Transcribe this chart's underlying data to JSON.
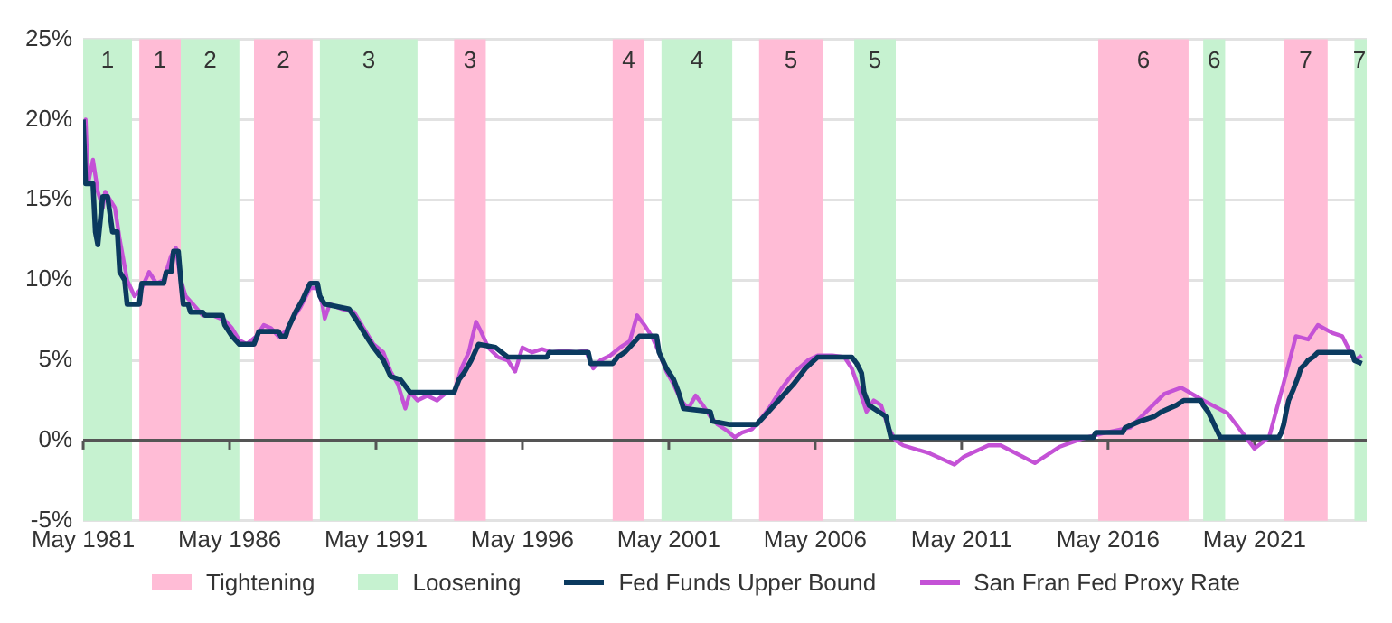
{
  "chart_data": {
    "type": "line",
    "xlim": [
      "1981-05",
      "2025-03"
    ],
    "xticks": [
      {
        "value": "1981-05",
        "label": "May 1981"
      },
      {
        "value": "1986-05",
        "label": "May 1986"
      },
      {
        "value": "1991-05",
        "label": "May 1991"
      },
      {
        "value": "1996-05",
        "label": "May 1996"
      },
      {
        "value": "2001-05",
        "label": "May 2001"
      },
      {
        "value": "2006-05",
        "label": "May 2006"
      },
      {
        "value": "2011-05",
        "label": "May 2011"
      },
      {
        "value": "2016-05",
        "label": "May 2016"
      },
      {
        "value": "2021-05",
        "label": "May 2021"
      }
    ],
    "ylim": [
      -5,
      25
    ],
    "yticks": [
      {
        "value": -5,
        "label": "-5%"
      },
      {
        "value": 0,
        "label": "0%"
      },
      {
        "value": 5,
        "label": "5%"
      },
      {
        "value": 10,
        "label": "10%"
      },
      {
        "value": 15,
        "label": "15%"
      },
      {
        "value": 20,
        "label": "20%"
      },
      {
        "value": 25,
        "label": "25%"
      }
    ],
    "grid": "y",
    "legend": "bottom",
    "annotations": [
      "Tightening",
      "Loosening"
    ],
    "bands": [
      {
        "axis": "x",
        "from": "1983-04",
        "to": "1984-09",
        "label": "1",
        "color": "#ffbcd6"
      },
      {
        "axis": "x",
        "from": "1987-03",
        "to": "1989-03",
        "label": "2",
        "color": "#ffbcd6"
      },
      {
        "axis": "x",
        "from": "1994-01",
        "to": "1995-02",
        "label": "3",
        "color": "#ffbcd6"
      },
      {
        "axis": "x",
        "from": "1999-06",
        "to": "2000-07",
        "label": "4",
        "color": "#ffbcd6"
      },
      {
        "axis": "x",
        "from": "2004-06",
        "to": "2006-08",
        "label": "5",
        "color": "#ffbcd6"
      },
      {
        "axis": "x",
        "from": "2016-01",
        "to": "2019-02",
        "label": "6",
        "color": "#ffbcd6"
      },
      {
        "axis": "x",
        "from": "2022-05",
        "to": "2023-11",
        "label": "7",
        "color": "#ffbcd6"
      },
      {
        "axis": "x",
        "from": "1981-05",
        "to": "1983-01",
        "label": "1",
        "color": "#c6f2d0"
      },
      {
        "axis": "x",
        "from": "1984-09",
        "to": "1986-09",
        "label": "2",
        "color": "#c6f2d0"
      },
      {
        "axis": "x",
        "from": "1989-06",
        "to": "1992-10",
        "label": "3",
        "color": "#c6f2d0"
      },
      {
        "axis": "x",
        "from": "2001-02",
        "to": "2003-07",
        "label": "4",
        "color": "#c6f2d0"
      },
      {
        "axis": "x",
        "from": "2007-09",
        "to": "2009-02",
        "label": "5",
        "color": "#c6f2d0"
      },
      {
        "axis": "x",
        "from": "2019-08",
        "to": "2020-05",
        "label": "6",
        "color": "#c6f2d0"
      },
      {
        "axis": "x",
        "from": "2024-10",
        "to": "2025-03",
        "label": "7",
        "color": "#c6f2d0"
      }
    ],
    "series": [
      {
        "name": "Fed Funds Upper Bound",
        "color": "#0b3a5f",
        "x": [
          "1981-05",
          "1981-06",
          "1981-09",
          "1981-10",
          "1981-11",
          "1982-01",
          "1982-03",
          "1982-05",
          "1982-07",
          "1982-08",
          "1982-10",
          "1982-11",
          "1983-04",
          "1983-05",
          "1984-02",
          "1984-03",
          "1984-05",
          "1984-06",
          "1984-08",
          "1984-09",
          "1984-10",
          "1984-12",
          "1985-01",
          "1985-06",
          "1985-07",
          "1986-02",
          "1986-03",
          "1986-06",
          "1986-09",
          "1987-03",
          "1987-05",
          "1988-01",
          "1988-02",
          "1988-04",
          "1988-05",
          "1988-08",
          "1988-11",
          "1989-02",
          "1989-05",
          "1989-06",
          "1989-08",
          "1990-06",
          "1990-09",
          "1991-01",
          "1991-04",
          "1991-08",
          "1991-11",
          "1992-03",
          "1992-07",
          "1994-01",
          "1994-03",
          "1994-05",
          "1994-08",
          "1994-11",
          "1995-06",
          "1995-11",
          "1997-03",
          "1997-04",
          "1998-08",
          "1998-09",
          "1999-06",
          "1999-08",
          "1999-11",
          "2000-02",
          "2000-05",
          "2000-12",
          "2001-01",
          "2001-04",
          "2001-07",
          "2001-09",
          "2001-11",
          "2002-10",
          "2002-11",
          "2003-06",
          "2004-05",
          "2004-08",
          "2005-02",
          "2005-08",
          "2006-01",
          "2006-06",
          "2007-08",
          "2007-10",
          "2007-12",
          "2008-01",
          "2008-03",
          "2008-10",
          "2008-12",
          "2015-11",
          "2015-12",
          "2016-11",
          "2016-12",
          "2017-03",
          "2017-06",
          "2017-12",
          "2018-03",
          "2018-06",
          "2018-09",
          "2018-12",
          "2019-07",
          "2019-08",
          "2019-10",
          "2020-03",
          "2022-03",
          "2022-04",
          "2022-05",
          "2022-06",
          "2022-07",
          "2022-09",
          "2022-11",
          "2022-12",
          "2023-02",
          "2023-03",
          "2023-05",
          "2023-07",
          "2024-09",
          "2024-10",
          "2025-01"
        ],
        "values": [
          20,
          16,
          16,
          13,
          12.2,
          15.2,
          15.2,
          13,
          13,
          10.5,
          10,
          8.5,
          8.5,
          9.8,
          9.8,
          10.5,
          10.5,
          11.8,
          11.8,
          10,
          8.5,
          8.5,
          8,
          8,
          7.8,
          7.8,
          7.2,
          6.5,
          6,
          6,
          6.8,
          6.8,
          6.5,
          6.5,
          7,
          8,
          8.8,
          9.8,
          9.8,
          9,
          8.5,
          8.2,
          7.5,
          6.5,
          5.8,
          5,
          4,
          3.8,
          3,
          3,
          3.8,
          4.2,
          5,
          6,
          5.8,
          5.2,
          5.2,
          5.5,
          5.5,
          4.8,
          4.8,
          5.2,
          5.5,
          6,
          6.5,
          6.5,
          5.5,
          4.5,
          3.8,
          3,
          2,
          1.8,
          1.2,
          1,
          1,
          1.5,
          2.5,
          3.5,
          4.5,
          5.2,
          5.2,
          4.8,
          4.2,
          3,
          2.2,
          1.5,
          0.2,
          0.2,
          0.5,
          0.5,
          0.8,
          1,
          1.2,
          1.5,
          1.8,
          2,
          2.2,
          2.5,
          2.5,
          2.2,
          1.8,
          0.2,
          0.2,
          0.5,
          1,
          1.8,
          2.5,
          3.2,
          4,
          4.5,
          4.8,
          5,
          5.2,
          5.5,
          5.5,
          5,
          4.8
        ]
      },
      {
        "name": "San Fran Fed Proxy Rate",
        "color": "#c452d6",
        "x": [
          "1981-05",
          "1981-06",
          "1981-07",
          "1981-09",
          "1981-11",
          "1982-01",
          "1982-02",
          "1982-06",
          "1982-08",
          "1982-11",
          "1983-02",
          "1983-05",
          "1983-08",
          "1983-11",
          "1984-02",
          "1984-05",
          "1984-07",
          "1984-09",
          "1984-11",
          "1985-02",
          "1985-06",
          "1985-10",
          "1986-03",
          "1986-06",
          "1986-09",
          "1986-12",
          "1987-04",
          "1987-07",
          "1987-10",
          "1988-01",
          "1988-04",
          "1988-07",
          "1988-10",
          "1989-02",
          "1989-05",
          "1989-07",
          "1989-08",
          "1989-10",
          "1990-03",
          "1990-08",
          "1990-12",
          "1991-04",
          "1991-08",
          "1991-11",
          "1992-02",
          "1992-05",
          "1992-07",
          "1992-10",
          "1993-02",
          "1993-06",
          "1993-10",
          "1994-01",
          "1994-04",
          "1994-07",
          "1994-10",
          "1994-12",
          "1995-03",
          "1995-07",
          "1995-11",
          "1996-02",
          "1996-05",
          "1996-09",
          "1997-01",
          "1997-05",
          "1997-10",
          "1998-03",
          "1998-07",
          "1998-10",
          "1999-01",
          "1999-05",
          "1999-09",
          "2000-01",
          "2000-04",
          "2000-07",
          "2000-10",
          "2001-01",
          "2001-04",
          "2001-07",
          "2001-10",
          "2002-01",
          "2002-04",
          "2002-07",
          "2002-10",
          "2003-01",
          "2003-05",
          "2003-08",
          "2003-11",
          "2004-03",
          "2004-06",
          "2004-10",
          "2005-03",
          "2005-08",
          "2006-02",
          "2006-06",
          "2006-12",
          "2007-05",
          "2007-08",
          "2007-11",
          "2008-02",
          "2008-05",
          "2008-08",
          "2008-11",
          "2009-02",
          "2009-05",
          "2010-04",
          "2011-02",
          "2011-06",
          "2012-04",
          "2012-09",
          "2013-11",
          "2014-09",
          "2015-06",
          "2016-04",
          "2017-02",
          "2018-04",
          "2018-11",
          "2019-08",
          "2020-06",
          "2021-05",
          "2021-11",
          "2022-05",
          "2022-10",
          "2023-03",
          "2023-07",
          "2024-01",
          "2024-05",
          "2024-10",
          "2025-01"
        ],
        "values": [
          16.5,
          20,
          16,
          17.5,
          15.5,
          14.5,
          15.5,
          14.5,
          12.5,
          10,
          9,
          9.5,
          10.5,
          9.8,
          10,
          11.5,
          12,
          10,
          9,
          8.5,
          7.8,
          7.8,
          7.5,
          7,
          6.25,
          6,
          6.5,
          7.2,
          7,
          6.5,
          6.8,
          7.6,
          8.3,
          9.5,
          9.5,
          8.5,
          7.6,
          8.5,
          8.2,
          8,
          7,
          6,
          5.5,
          4.3,
          3.5,
          2,
          3,
          2.5,
          2.8,
          2.5,
          3,
          3,
          4.5,
          5.5,
          7.4,
          6.8,
          5.8,
          5.2,
          5,
          4.3,
          5.8,
          5.5,
          5.7,
          5.5,
          5.6,
          5.5,
          5.6,
          4.5,
          5,
          5.3,
          5.8,
          6.2,
          7.8,
          7.2,
          6.5,
          5.5,
          4.3,
          3.5,
          2.5,
          2,
          2.8,
          2.2,
          1.5,
          1,
          0.6,
          0.2,
          0.5,
          0.7,
          1.2,
          2,
          3.2,
          4.2,
          5,
          5.3,
          5.3,
          5.2,
          4.5,
          3.2,
          1.8,
          2.5,
          2.2,
          0.8,
          0,
          -0.3,
          -0.8,
          -1.5,
          -1,
          -0.3,
          -0.3,
          -1.4,
          -0.4,
          0.1,
          0.5,
          0.8,
          2.9,
          3.3,
          2.5,
          1.7,
          -0.5,
          0.2,
          3.6,
          6.5,
          6.3,
          7.2,
          6.7,
          6.5,
          5,
          5.3
        ]
      }
    ]
  }
}
